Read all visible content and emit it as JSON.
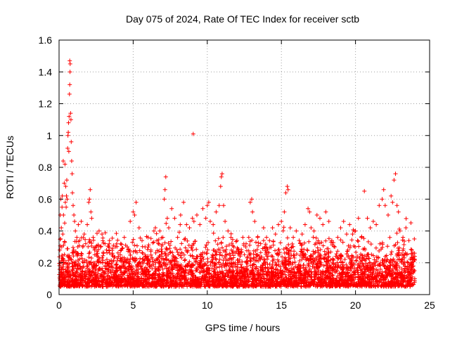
{
  "chart_data": {
    "type": "scatter",
    "title": "Day 075 of 2024, Rate Of TEC Index for receiver sctb",
    "xlabel": "GPS time / hours",
    "ylabel": "ROTI / TECUs",
    "xlim": [
      0,
      25
    ],
    "ylim": [
      0,
      1.6
    ],
    "xticks": [
      0,
      5,
      10,
      15,
      20,
      25
    ],
    "yticks": [
      0,
      0.2,
      0.4,
      0.6,
      0.8,
      1,
      1.2,
      1.4,
      1.6
    ],
    "xtick_labels": [
      "0",
      "5",
      "10",
      "15",
      "20",
      "25"
    ],
    "ytick_labels": [
      "0",
      "0.2",
      "0.4",
      "0.6",
      "0.8",
      "1",
      "1.2",
      "1.4",
      "1.6"
    ],
    "grid": true,
    "grid_style": "dotted",
    "marker": "+",
    "color": "#ff0000",
    "points": [
      [
        0.05,
        0.28
      ],
      [
        0.08,
        0.5
      ],
      [
        0.1,
        0.35
      ],
      [
        0.12,
        0.6
      ],
      [
        0.15,
        0.42
      ],
      [
        0.18,
        0.3
      ],
      [
        0.2,
        0.55
      ],
      [
        0.22,
        0.62
      ],
      [
        0.25,
        0.38
      ],
      [
        0.28,
        0.84
      ],
      [
        0.3,
        0.5
      ],
      [
        0.35,
        0.7
      ],
      [
        0.38,
        0.45
      ],
      [
        0.4,
        0.82
      ],
      [
        0.42,
        0.58
      ],
      [
        0.45,
        0.68
      ],
      [
        0.48,
        0.55
      ],
      [
        0.5,
        0.62
      ],
      [
        0.52,
        0.72
      ],
      [
        0.55,
        0.6
      ],
      [
        0.58,
        0.92
      ],
      [
        0.6,
        1.0
      ],
      [
        0.62,
        1.02
      ],
      [
        0.64,
        1.08
      ],
      [
        0.66,
        0.9
      ],
      [
        0.68,
        1.12
      ],
      [
        0.7,
        1.26
      ],
      [
        0.72,
        1.32
      ],
      [
        0.74,
        1.4
      ],
      [
        0.75,
        1.45
      ],
      [
        0.72,
        1.47
      ],
      [
        0.78,
        1.14
      ],
      [
        0.8,
        1.1
      ],
      [
        0.82,
        0.96
      ],
      [
        0.85,
        0.84
      ],
      [
        0.88,
        0.76
      ],
      [
        0.9,
        0.64
      ],
      [
        0.95,
        0.56
      ],
      [
        1.0,
        0.5
      ],
      [
        1.05,
        0.46
      ],
      [
        1.1,
        0.4
      ],
      [
        1.2,
        0.36
      ],
      [
        1.3,
        0.44
      ],
      [
        1.4,
        0.34
      ],
      [
        1.5,
        0.46
      ],
      [
        1.6,
        0.3
      ],
      [
        1.7,
        0.38
      ],
      [
        1.8,
        0.32
      ],
      [
        1.9,
        0.44
      ],
      [
        2.0,
        0.58
      ],
      [
        2.05,
        0.6
      ],
      [
        2.1,
        0.66
      ],
      [
        2.15,
        0.52
      ],
      [
        2.2,
        0.48
      ],
      [
        2.3,
        0.36
      ],
      [
        2.4,
        0.28
      ],
      [
        2.5,
        0.3
      ],
      [
        2.6,
        0.26
      ],
      [
        2.7,
        0.4
      ],
      [
        2.8,
        0.3
      ],
      [
        2.9,
        0.38
      ],
      [
        3.0,
        0.26
      ],
      [
        3.1,
        0.32
      ],
      [
        3.2,
        0.28
      ],
      [
        3.4,
        0.34
      ],
      [
        3.6,
        0.26
      ],
      [
        3.8,
        0.3
      ],
      [
        4.0,
        0.24
      ],
      [
        4.2,
        0.28
      ],
      [
        4.4,
        0.36
      ],
      [
        4.6,
        0.3
      ],
      [
        4.8,
        0.46
      ],
      [
        5.0,
        0.52
      ],
      [
        5.1,
        0.5
      ],
      [
        5.2,
        0.58
      ],
      [
        5.4,
        0.42
      ],
      [
        5.6,
        0.34
      ],
      [
        5.8,
        0.3
      ],
      [
        6.0,
        0.36
      ],
      [
        6.2,
        0.28
      ],
      [
        6.4,
        0.4
      ],
      [
        6.5,
        0.42
      ],
      [
        6.6,
        0.34
      ],
      [
        6.8,
        0.4
      ],
      [
        7.0,
        0.36
      ],
      [
        7.1,
        0.6
      ],
      [
        7.15,
        0.66
      ],
      [
        7.2,
        0.74
      ],
      [
        7.3,
        0.48
      ],
      [
        7.4,
        0.42
      ],
      [
        7.6,
        0.54
      ],
      [
        7.8,
        0.48
      ],
      [
        8.0,
        0.36
      ],
      [
        8.2,
        0.5
      ],
      [
        8.4,
        0.58
      ],
      [
        8.6,
        0.44
      ],
      [
        8.8,
        0.42
      ],
      [
        9.0,
        0.48
      ],
      [
        9.05,
        1.01
      ],
      [
        9.1,
        0.46
      ],
      [
        9.3,
        0.5
      ],
      [
        9.5,
        0.44
      ],
      [
        9.7,
        0.54
      ],
      [
        9.9,
        0.48
      ],
      [
        10.0,
        0.56
      ],
      [
        10.1,
        0.58
      ],
      [
        10.2,
        0.46
      ],
      [
        10.4,
        0.44
      ],
      [
        10.6,
        0.52
      ],
      [
        10.8,
        0.56
      ],
      [
        10.9,
        0.68
      ],
      [
        10.95,
        0.74
      ],
      [
        11.0,
        0.76
      ],
      [
        11.1,
        0.56
      ],
      [
        11.2,
        0.46
      ],
      [
        11.4,
        0.4
      ],
      [
        11.6,
        0.36
      ],
      [
        11.8,
        0.3
      ],
      [
        12.0,
        0.34
      ],
      [
        12.2,
        0.26
      ],
      [
        12.4,
        0.36
      ],
      [
        12.6,
        0.3
      ],
      [
        12.8,
        0.36
      ],
      [
        12.9,
        0.58
      ],
      [
        13.0,
        0.6
      ],
      [
        13.05,
        0.52
      ],
      [
        13.2,
        0.46
      ],
      [
        13.4,
        0.36
      ],
      [
        13.6,
        0.32
      ],
      [
        13.8,
        0.42
      ],
      [
        14.0,
        0.36
      ],
      [
        14.2,
        0.34
      ],
      [
        14.4,
        0.42
      ],
      [
        14.6,
        0.38
      ],
      [
        14.8,
        0.44
      ],
      [
        15.0,
        0.46
      ],
      [
        15.2,
        0.52
      ],
      [
        15.3,
        0.64
      ],
      [
        15.4,
        0.68
      ],
      [
        15.45,
        0.66
      ],
      [
        15.6,
        0.42
      ],
      [
        15.8,
        0.36
      ],
      [
        16.0,
        0.4
      ],
      [
        16.2,
        0.34
      ],
      [
        16.4,
        0.38
      ],
      [
        16.6,
        0.44
      ],
      [
        16.8,
        0.54
      ],
      [
        16.9,
        0.52
      ],
      [
        17.0,
        0.42
      ],
      [
        17.2,
        0.4
      ],
      [
        17.4,
        0.5
      ],
      [
        17.6,
        0.48
      ],
      [
        17.8,
        0.44
      ],
      [
        18.0,
        0.52
      ],
      [
        18.2,
        0.46
      ],
      [
        18.4,
        0.34
      ],
      [
        18.6,
        0.3
      ],
      [
        18.8,
        0.36
      ],
      [
        19.0,
        0.42
      ],
      [
        19.2,
        0.46
      ],
      [
        19.4,
        0.38
      ],
      [
        19.6,
        0.44
      ],
      [
        19.8,
        0.38
      ],
      [
        20.0,
        0.4
      ],
      [
        20.2,
        0.48
      ],
      [
        20.4,
        0.36
      ],
      [
        20.6,
        0.65
      ],
      [
        20.8,
        0.48
      ],
      [
        21.0,
        0.42
      ],
      [
        21.2,
        0.46
      ],
      [
        21.4,
        0.44
      ],
      [
        21.6,
        0.56
      ],
      [
        21.8,
        0.6
      ],
      [
        21.9,
        0.66
      ],
      [
        22.0,
        0.56
      ],
      [
        22.2,
        0.5
      ],
      [
        22.4,
        0.62
      ],
      [
        22.5,
        0.58
      ],
      [
        22.6,
        0.72
      ],
      [
        22.7,
        0.76
      ],
      [
        22.8,
        0.56
      ],
      [
        22.9,
        0.52
      ],
      [
        23.0,
        0.4
      ],
      [
        23.2,
        0.36
      ],
      [
        23.4,
        0.42
      ],
      [
        23.6,
        0.34
      ],
      [
        23.8,
        0.28
      ],
      [
        24.0,
        0.24
      ],
      [
        23.9,
        0.18
      ],
      [
        23.7,
        0.14
      ],
      [
        0.3,
        0.2
      ],
      [
        0.6,
        0.15
      ],
      [
        1.0,
        0.18
      ],
      [
        1.5,
        0.12
      ],
      [
        2.0,
        0.2
      ],
      [
        2.5,
        0.16
      ],
      [
        3.0,
        0.14
      ],
      [
        3.5,
        0.18
      ],
      [
        4.0,
        0.12
      ],
      [
        4.5,
        0.16
      ],
      [
        5.0,
        0.1
      ],
      [
        5.5,
        0.18
      ],
      [
        6.0,
        0.14
      ],
      [
        6.5,
        0.12
      ],
      [
        7.0,
        0.16
      ],
      [
        7.5,
        0.2
      ],
      [
        8.0,
        0.18
      ],
      [
        8.5,
        0.22
      ],
      [
        9.0,
        0.24
      ],
      [
        9.5,
        0.2
      ],
      [
        10.0,
        0.26
      ],
      [
        10.5,
        0.18
      ],
      [
        11.0,
        0.14
      ],
      [
        11.5,
        0.16
      ],
      [
        12.0,
        0.12
      ],
      [
        12.5,
        0.1
      ],
      [
        13.0,
        0.14
      ],
      [
        13.5,
        0.12
      ],
      [
        14.0,
        0.1
      ],
      [
        14.5,
        0.12
      ],
      [
        15.0,
        0.14
      ],
      [
        15.5,
        0.1
      ],
      [
        16.0,
        0.12
      ],
      [
        16.5,
        0.1
      ],
      [
        17.0,
        0.14
      ],
      [
        17.5,
        0.1
      ],
      [
        18.0,
        0.12
      ],
      [
        18.5,
        0.08
      ],
      [
        19.0,
        0.1
      ],
      [
        19.5,
        0.12
      ],
      [
        20.0,
        0.14
      ],
      [
        20.5,
        0.1
      ],
      [
        21.0,
        0.16
      ],
      [
        21.5,
        0.12
      ],
      [
        22.0,
        0.14
      ],
      [
        22.5,
        0.1
      ],
      [
        23.0,
        0.12
      ],
      [
        23.5,
        0.08
      ],
      [
        24.0,
        0.1
      ],
      [
        0.1,
        0.05
      ]
    ]
  }
}
